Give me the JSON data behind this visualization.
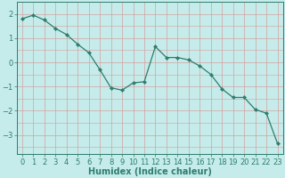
{
  "x": [
    0,
    1,
    2,
    3,
    4,
    5,
    6,
    7,
    8,
    9,
    10,
    11,
    12,
    13,
    14,
    15,
    16,
    17,
    18,
    19,
    20,
    21,
    22,
    23
  ],
  "y": [
    1.8,
    1.95,
    1.75,
    1.4,
    1.15,
    0.75,
    0.4,
    -0.3,
    -1.05,
    -1.15,
    -0.85,
    -0.8,
    0.65,
    0.2,
    0.2,
    0.1,
    -0.15,
    -0.5,
    -1.1,
    -1.45,
    -1.45,
    -1.95,
    -2.1,
    -3.35
  ],
  "line_color": "#2e7d6e",
  "marker": "D",
  "markersize": 2.2,
  "linewidth": 0.9,
  "bg_color": "#c5ecea",
  "grid_color": "#d4a0a0",
  "xlabel": "Humidex (Indice chaleur)",
  "xlabel_fontsize": 7,
  "tick_fontsize": 6,
  "ylim": [
    -3.8,
    2.5
  ],
  "xlim": [
    -0.5,
    23.5
  ],
  "yticks": [
    -3,
    -2,
    -1,
    0,
    1,
    2
  ],
  "xticks": [
    0,
    1,
    2,
    3,
    4,
    5,
    6,
    7,
    8,
    9,
    10,
    11,
    12,
    13,
    14,
    15,
    16,
    17,
    18,
    19,
    20,
    21,
    22,
    23
  ]
}
